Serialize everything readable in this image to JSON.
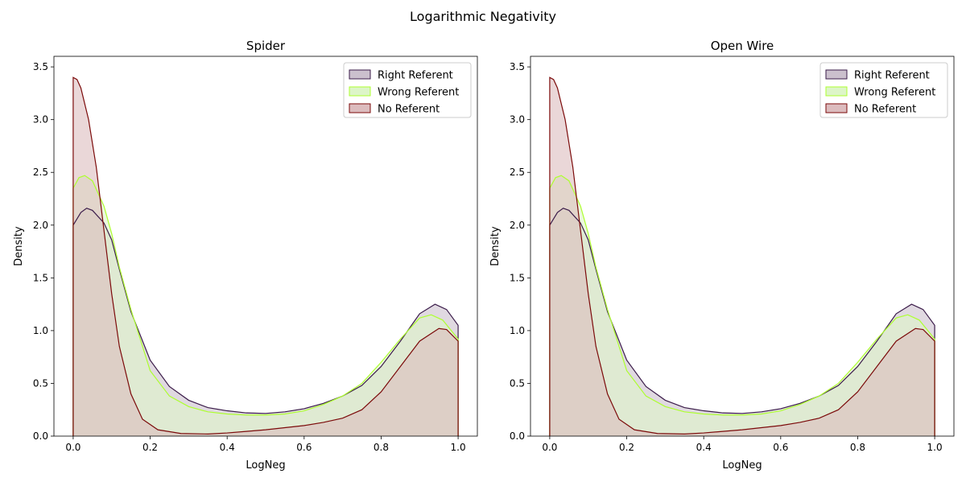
{
  "figure": {
    "suptitle": "Logarithmic Negativity"
  },
  "chart_data": [
    {
      "type": "area",
      "title": "Spider",
      "xlabel": "LogNeg",
      "ylabel": "Density",
      "xlim": [
        -0.05,
        1.05
      ],
      "ylim": [
        0,
        3.6
      ],
      "xticks": [
        "0.0",
        "0.2",
        "0.4",
        "0.6",
        "0.8",
        "1.0"
      ],
      "yticks": [
        "0.0",
        "0.5",
        "1.0",
        "1.5",
        "2.0",
        "2.5",
        "3.0",
        "3.5"
      ],
      "grid": false,
      "legend": "top-right",
      "series": [
        {
          "name": "Right Referent",
          "color": "#3b1c4a",
          "fill": "#cbc0cd",
          "points": [
            [
              0.0,
              2.0
            ],
            [
              0.02,
              2.12
            ],
            [
              0.035,
              2.16
            ],
            [
              0.05,
              2.14
            ],
            [
              0.08,
              2.02
            ],
            [
              0.1,
              1.86
            ],
            [
              0.12,
              1.58
            ],
            [
              0.15,
              1.18
            ],
            [
              0.2,
              0.72
            ],
            [
              0.25,
              0.47
            ],
            [
              0.3,
              0.34
            ],
            [
              0.35,
              0.27
            ],
            [
              0.4,
              0.24
            ],
            [
              0.45,
              0.22
            ],
            [
              0.5,
              0.215
            ],
            [
              0.55,
              0.23
            ],
            [
              0.6,
              0.26
            ],
            [
              0.65,
              0.31
            ],
            [
              0.7,
              0.38
            ],
            [
              0.75,
              0.48
            ],
            [
              0.8,
              0.66
            ],
            [
              0.85,
              0.9
            ],
            [
              0.9,
              1.16
            ],
            [
              0.94,
              1.25
            ],
            [
              0.97,
              1.2
            ],
            [
              1.0,
              1.05
            ],
            [
              1.0,
              0.0
            ]
          ]
        },
        {
          "name": "Wrong Referent",
          "color": "#adff2f",
          "fill": "#ddf5c8",
          "points": [
            [
              0.0,
              2.35
            ],
            [
              0.015,
              2.45
            ],
            [
              0.03,
              2.47
            ],
            [
              0.05,
              2.42
            ],
            [
              0.08,
              2.18
            ],
            [
              0.1,
              1.92
            ],
            [
              0.12,
              1.6
            ],
            [
              0.15,
              1.2
            ],
            [
              0.2,
              0.62
            ],
            [
              0.25,
              0.38
            ],
            [
              0.3,
              0.28
            ],
            [
              0.35,
              0.23
            ],
            [
              0.4,
              0.21
            ],
            [
              0.45,
              0.2
            ],
            [
              0.5,
              0.2
            ],
            [
              0.55,
              0.21
            ],
            [
              0.6,
              0.24
            ],
            [
              0.65,
              0.3
            ],
            [
              0.7,
              0.38
            ],
            [
              0.75,
              0.5
            ],
            [
              0.8,
              0.7
            ],
            [
              0.85,
              0.92
            ],
            [
              0.9,
              1.12
            ],
            [
              0.93,
              1.15
            ],
            [
              0.96,
              1.1
            ],
            [
              1.0,
              0.92
            ],
            [
              1.0,
              0.0
            ]
          ]
        },
        {
          "name": "No Referent",
          "color": "#7b0a0a",
          "fill": "#dcbcbe",
          "points": [
            [
              0.0,
              3.4
            ],
            [
              0.01,
              3.38
            ],
            [
              0.02,
              3.3
            ],
            [
              0.04,
              3.0
            ],
            [
              0.06,
              2.55
            ],
            [
              0.08,
              1.95
            ],
            [
              0.1,
              1.35
            ],
            [
              0.12,
              0.85
            ],
            [
              0.15,
              0.4
            ],
            [
              0.18,
              0.16
            ],
            [
              0.22,
              0.06
            ],
            [
              0.28,
              0.025
            ],
            [
              0.35,
              0.02
            ],
            [
              0.4,
              0.03
            ],
            [
              0.45,
              0.045
            ],
            [
              0.5,
              0.06
            ],
            [
              0.55,
              0.08
            ],
            [
              0.6,
              0.1
            ],
            [
              0.65,
              0.13
            ],
            [
              0.7,
              0.17
            ],
            [
              0.75,
              0.25
            ],
            [
              0.8,
              0.42
            ],
            [
              0.85,
              0.66
            ],
            [
              0.9,
              0.9
            ],
            [
              0.95,
              1.02
            ],
            [
              0.97,
              1.01
            ],
            [
              1.0,
              0.9
            ],
            [
              1.0,
              0.0
            ]
          ]
        }
      ]
    },
    {
      "type": "area",
      "title": "Open Wire",
      "xlabel": "LogNeg",
      "ylabel": "Density",
      "xlim": [
        -0.05,
        1.05
      ],
      "ylim": [
        0,
        3.6
      ],
      "xticks": [
        "0.0",
        "0.2",
        "0.4",
        "0.6",
        "0.8",
        "1.0"
      ],
      "yticks": [
        "0.0",
        "0.5",
        "1.0",
        "1.5",
        "2.0",
        "2.5",
        "3.0",
        "3.5"
      ],
      "grid": false,
      "legend": "top-right",
      "series": [
        {
          "name": "Right Referent",
          "color": "#3b1c4a",
          "fill": "#cbc0cd",
          "points": [
            [
              0.0,
              2.0
            ],
            [
              0.02,
              2.12
            ],
            [
              0.035,
              2.16
            ],
            [
              0.05,
              2.14
            ],
            [
              0.08,
              2.02
            ],
            [
              0.1,
              1.86
            ],
            [
              0.12,
              1.58
            ],
            [
              0.15,
              1.18
            ],
            [
              0.2,
              0.72
            ],
            [
              0.25,
              0.47
            ],
            [
              0.3,
              0.34
            ],
            [
              0.35,
              0.27
            ],
            [
              0.4,
              0.24
            ],
            [
              0.45,
              0.22
            ],
            [
              0.5,
              0.215
            ],
            [
              0.55,
              0.23
            ],
            [
              0.6,
              0.26
            ],
            [
              0.65,
              0.31
            ],
            [
              0.7,
              0.38
            ],
            [
              0.75,
              0.48
            ],
            [
              0.8,
              0.66
            ],
            [
              0.85,
              0.9
            ],
            [
              0.9,
              1.16
            ],
            [
              0.94,
              1.25
            ],
            [
              0.97,
              1.2
            ],
            [
              1.0,
              1.05
            ],
            [
              1.0,
              0.0
            ]
          ]
        },
        {
          "name": "Wrong Referent",
          "color": "#adff2f",
          "fill": "#ddf5c8",
          "points": [
            [
              0.0,
              2.35
            ],
            [
              0.015,
              2.45
            ],
            [
              0.03,
              2.47
            ],
            [
              0.05,
              2.42
            ],
            [
              0.08,
              2.18
            ],
            [
              0.1,
              1.92
            ],
            [
              0.12,
              1.6
            ],
            [
              0.15,
              1.2
            ],
            [
              0.2,
              0.62
            ],
            [
              0.25,
              0.38
            ],
            [
              0.3,
              0.28
            ],
            [
              0.35,
              0.23
            ],
            [
              0.4,
              0.21
            ],
            [
              0.45,
              0.2
            ],
            [
              0.5,
              0.2
            ],
            [
              0.55,
              0.21
            ],
            [
              0.6,
              0.24
            ],
            [
              0.65,
              0.3
            ],
            [
              0.7,
              0.38
            ],
            [
              0.75,
              0.5
            ],
            [
              0.8,
              0.7
            ],
            [
              0.85,
              0.92
            ],
            [
              0.9,
              1.12
            ],
            [
              0.93,
              1.15
            ],
            [
              0.96,
              1.1
            ],
            [
              1.0,
              0.92
            ],
            [
              1.0,
              0.0
            ]
          ]
        },
        {
          "name": "No Referent",
          "color": "#7b0a0a",
          "fill": "#dcbcbe",
          "points": [
            [
              0.0,
              3.4
            ],
            [
              0.01,
              3.38
            ],
            [
              0.02,
              3.3
            ],
            [
              0.04,
              3.0
            ],
            [
              0.06,
              2.55
            ],
            [
              0.08,
              1.95
            ],
            [
              0.1,
              1.35
            ],
            [
              0.12,
              0.85
            ],
            [
              0.15,
              0.4
            ],
            [
              0.18,
              0.16
            ],
            [
              0.22,
              0.06
            ],
            [
              0.28,
              0.025
            ],
            [
              0.35,
              0.02
            ],
            [
              0.4,
              0.03
            ],
            [
              0.45,
              0.045
            ],
            [
              0.5,
              0.06
            ],
            [
              0.55,
              0.08
            ],
            [
              0.6,
              0.1
            ],
            [
              0.65,
              0.13
            ],
            [
              0.7,
              0.17
            ],
            [
              0.75,
              0.25
            ],
            [
              0.8,
              0.42
            ],
            [
              0.85,
              0.66
            ],
            [
              0.9,
              0.9
            ],
            [
              0.95,
              1.02
            ],
            [
              0.97,
              1.01
            ],
            [
              1.0,
              0.9
            ],
            [
              1.0,
              0.0
            ]
          ]
        }
      ]
    }
  ]
}
